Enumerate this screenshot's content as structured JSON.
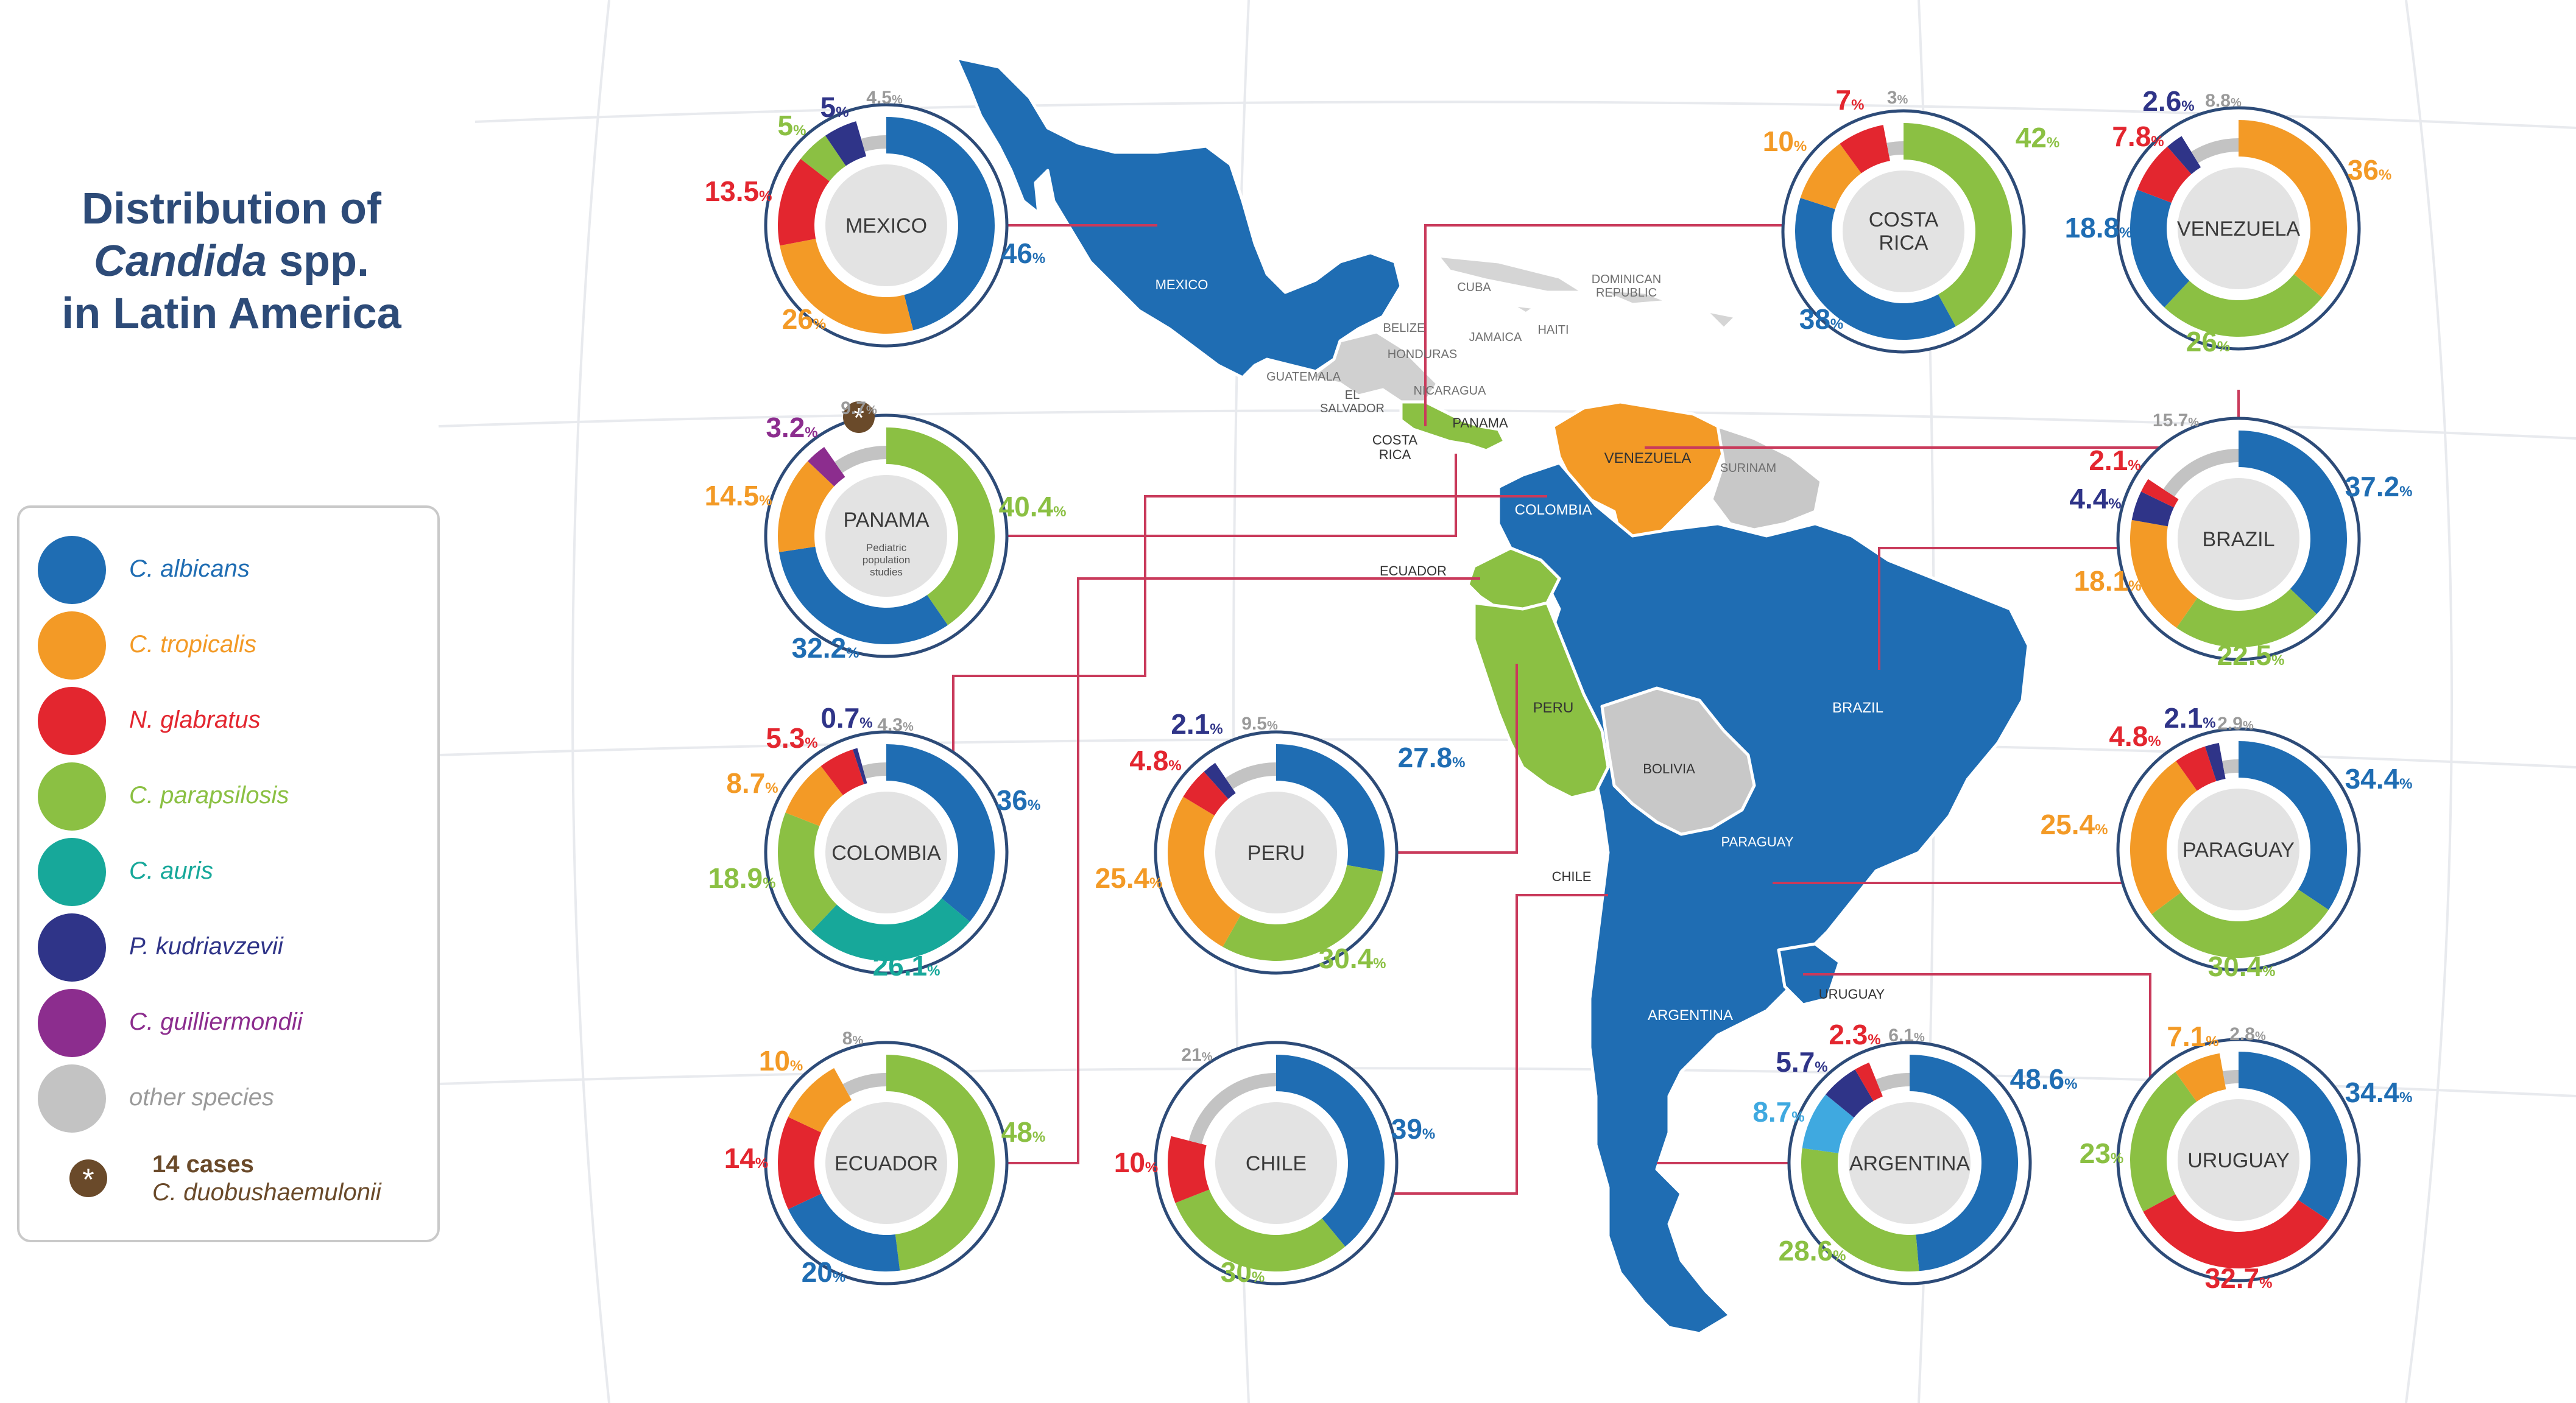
{
  "title": {
    "line1": "Distribution of",
    "italic": "Candida",
    "spp": " spp.",
    "line3": "in Latin America"
  },
  "colors": {
    "c_albicans": "#1f6db3",
    "c_tropicalis": "#f39a26",
    "n_glabratus": "#e3262f",
    "c_parapsilosis": "#8bc043",
    "c_auris": "#17a89a",
    "p_kudriavzevii": "#2f3488",
    "c_guilliermondii": "#8c2d8e",
    "c_auris_alt": "#3fa9e0",
    "other": "#c3c3c3"
  },
  "legend": [
    {
      "label": "C. albicans",
      "key": "c_albicans"
    },
    {
      "label": "C. tropicalis",
      "key": "c_tropicalis"
    },
    {
      "label": "N. glabratus",
      "key": "n_glabratus"
    },
    {
      "label": "C. parapsilosis",
      "key": "c_parapsilosis"
    },
    {
      "label": "C. auris",
      "key": "c_auris"
    },
    {
      "label": "P. kudriavzevii",
      "key": "p_kudriavzevii"
    },
    {
      "label": "C. guilliermondii",
      "key": "c_guilliermondii"
    },
    {
      "label": "other species",
      "key": "other"
    }
  ],
  "legend_special": {
    "cases": "14 cases",
    "species": "C. duobushaemulonii"
  },
  "map_labels": [
    "MEXICO",
    "BELIZE",
    "GUATEMALA",
    "HONDURAS",
    "EL SALVADOR",
    "NICARAGUA",
    "COSTA RICA",
    "PANAMA",
    "CUBA",
    "JAMAICA",
    "HAITI",
    "DOMINICAN REPUBLIC",
    "VENEZUELA",
    "SURINAM",
    "COLOMBIA",
    "ECUADOR",
    "PERU",
    "BRAZIL",
    "BOLIVIA",
    "PARAGUAY",
    "CHILE",
    "URUGUAY",
    "ARGENTINA"
  ],
  "chart_data": {
    "type": "donut",
    "charts": [
      {
        "country": "MEXICO",
        "segments": [
          {
            "species": "c_albicans",
            "value": 46,
            "label": "46"
          },
          {
            "species": "c_tropicalis",
            "value": 26,
            "label": "26"
          },
          {
            "species": "n_glabratus",
            "value": 13.5,
            "label": "13.5"
          },
          {
            "species": "c_parapsilosis",
            "value": 5,
            "label": "5"
          },
          {
            "species": "p_kudriavzevii",
            "value": 5,
            "label": "5"
          },
          {
            "species": "other",
            "value": 4.5,
            "label": "4.5"
          }
        ]
      },
      {
        "country": "COSTA RICA",
        "segments": [
          {
            "species": "c_parapsilosis",
            "value": 42,
            "label": "42"
          },
          {
            "species": "c_albicans",
            "value": 38,
            "label": "38"
          },
          {
            "species": "c_tropicalis",
            "value": 10,
            "label": "10"
          },
          {
            "species": "n_glabratus",
            "value": 7,
            "label": "7"
          },
          {
            "species": "other",
            "value": 3,
            "label": "3"
          }
        ]
      },
      {
        "country": "VENEZUELA",
        "segments": [
          {
            "species": "c_tropicalis",
            "value": 36,
            "label": "36"
          },
          {
            "species": "c_parapsilosis",
            "value": 26,
            "label": "26"
          },
          {
            "species": "c_albicans",
            "value": 18.8,
            "label": "18.8"
          },
          {
            "species": "n_glabratus",
            "value": 7.8,
            "label": "7.8"
          },
          {
            "species": "p_kudriavzevii",
            "value": 2.6,
            "label": "2.6"
          },
          {
            "species": "other",
            "value": 8.8,
            "label": "8.8"
          }
        ]
      },
      {
        "country": "PANAMA",
        "subtitle": "Pediatric population studies",
        "segments": [
          {
            "species": "c_parapsilosis",
            "value": 40.4,
            "label": "40.4"
          },
          {
            "species": "c_albicans",
            "value": 32.2,
            "label": "32.2"
          },
          {
            "species": "c_tropicalis",
            "value": 14.5,
            "label": "14.5"
          },
          {
            "species": "c_guilliermondii",
            "value": 3.2,
            "label": "3.2"
          },
          {
            "species": "other",
            "value": 9.7,
            "label": "9.7"
          }
        ]
      },
      {
        "country": "BRAZIL",
        "segments": [
          {
            "species": "c_albicans",
            "value": 37.2,
            "label": "37.2"
          },
          {
            "species": "c_parapsilosis",
            "value": 22.5,
            "label": "22.5"
          },
          {
            "species": "c_tropicalis",
            "value": 18.1,
            "label": "18.1"
          },
          {
            "species": "p_kudriavzevii",
            "value": 4.4,
            "label": "4.4"
          },
          {
            "species": "n_glabratus",
            "value": 2.1,
            "label": "2.1"
          },
          {
            "species": "other",
            "value": 15.7,
            "label": "15.7"
          }
        ]
      },
      {
        "country": "COLOMBIA",
        "segments": [
          {
            "species": "c_albicans",
            "value": 36,
            "label": "36"
          },
          {
            "species": "c_auris",
            "value": 26.1,
            "label": "26.1"
          },
          {
            "species": "c_parapsilosis",
            "value": 18.9,
            "label": "18.9"
          },
          {
            "species": "c_tropicalis",
            "value": 8.7,
            "label": "8.7"
          },
          {
            "species": "n_glabratus",
            "value": 5.3,
            "label": "5.3"
          },
          {
            "species": "p_kudriavzevii",
            "value": 0.7,
            "label": "0.7"
          },
          {
            "species": "other",
            "value": 4.3,
            "label": "4.3"
          }
        ]
      },
      {
        "country": "PERU",
        "segments": [
          {
            "species": "c_albicans",
            "value": 27.8,
            "label": "27.8"
          },
          {
            "species": "c_parapsilosis",
            "value": 30.4,
            "label": "30.4"
          },
          {
            "species": "c_tropicalis",
            "value": 25.4,
            "label": "25.4"
          },
          {
            "species": "n_glabratus",
            "value": 4.8,
            "label": "4.8"
          },
          {
            "species": "p_kudriavzevii",
            "value": 2.1,
            "label": "2.1"
          },
          {
            "species": "other",
            "value": 9.5,
            "label": "9.5"
          }
        ]
      },
      {
        "country": "PARAGUAY",
        "segments": [
          {
            "species": "c_albicans",
            "value": 34.4,
            "label": "34.4"
          },
          {
            "species": "c_parapsilosis",
            "value": 30.4,
            "label": "30.4"
          },
          {
            "species": "c_tropicalis",
            "value": 25.4,
            "label": "25.4"
          },
          {
            "species": "n_glabratus",
            "value": 4.8,
            "label": "4.8"
          },
          {
            "species": "p_kudriavzevii",
            "value": 2.1,
            "label": "2.1"
          },
          {
            "species": "other",
            "value": 2.9,
            "label": "2.9"
          }
        ]
      },
      {
        "country": "ECUADOR",
        "segments": [
          {
            "species": "c_parapsilosis",
            "value": 48,
            "label": "48"
          },
          {
            "species": "c_albicans",
            "value": 20,
            "label": "20"
          },
          {
            "species": "n_glabratus",
            "value": 14,
            "label": "14"
          },
          {
            "species": "c_tropicalis",
            "value": 10,
            "label": "10"
          },
          {
            "species": "other",
            "value": 8,
            "label": "8"
          }
        ]
      },
      {
        "country": "CHILE",
        "segments": [
          {
            "species": "c_albicans",
            "value": 39,
            "label": "39"
          },
          {
            "species": "c_parapsilosis",
            "value": 30,
            "label": "30"
          },
          {
            "species": "n_glabratus",
            "value": 10,
            "label": "10"
          },
          {
            "species": "other",
            "value": 21,
            "label": "21"
          }
        ]
      },
      {
        "country": "ARGENTINA",
        "segments": [
          {
            "species": "c_albicans",
            "value": 48.6,
            "label": "48.6"
          },
          {
            "species": "c_parapsilosis",
            "value": 28.6,
            "label": "28.6"
          },
          {
            "species": "c_auris_alt",
            "value": 8.7,
            "label": "8.7"
          },
          {
            "species": "p_kudriavzevii",
            "value": 5.7,
            "label": "5.7"
          },
          {
            "species": "n_glabratus",
            "value": 2.3,
            "label": "2.3"
          },
          {
            "species": "other",
            "value": 6.1,
            "label": "6.1"
          }
        ]
      },
      {
        "country": "URUGUAY",
        "segments": [
          {
            "species": "c_albicans",
            "value": 34.4,
            "label": "34.4"
          },
          {
            "species": "n_glabratus",
            "value": 32.7,
            "label": "32.7"
          },
          {
            "species": "c_parapsilosis",
            "value": 23,
            "label": "23"
          },
          {
            "species": "c_tropicalis",
            "value": 7.1,
            "label": "7.1"
          },
          {
            "species": "other",
            "value": 2.8,
            "label": "2.8"
          }
        ]
      }
    ]
  }
}
